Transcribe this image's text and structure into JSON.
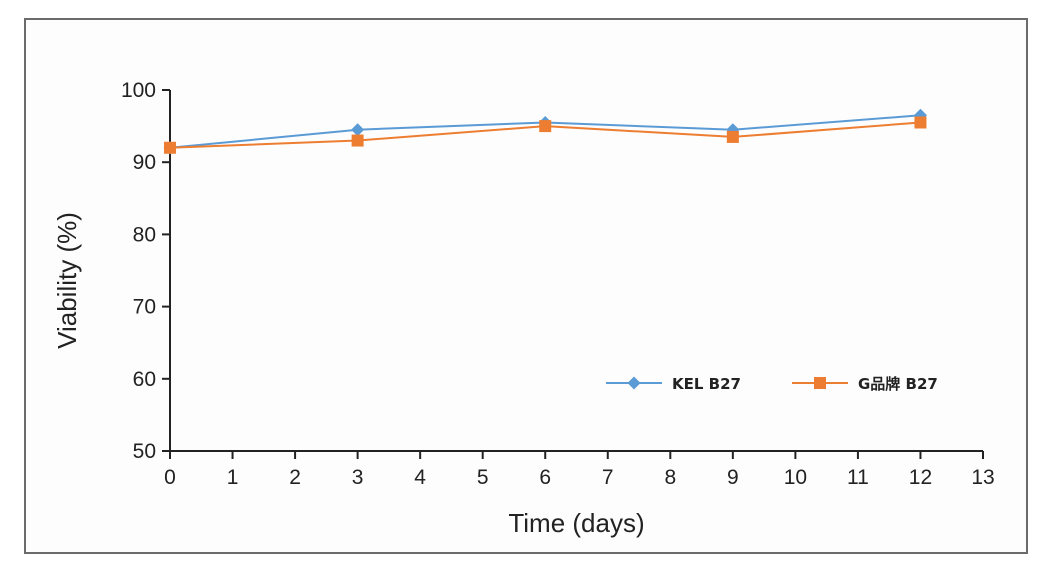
{
  "chart_data": {
    "type": "line",
    "title": "",
    "xlabel": "Time (days)",
    "ylabel": "Viability (%)",
    "xlim": [
      0,
      13
    ],
    "ylim": [
      50,
      100
    ],
    "xticks": [
      0,
      1,
      2,
      3,
      4,
      5,
      6,
      7,
      8,
      9,
      10,
      11,
      12,
      13
    ],
    "yticks": [
      50,
      60,
      70,
      80,
      90,
      100
    ],
    "grid": false,
    "legend_position": "bottom-right",
    "series": [
      {
        "name": "KEL  B27",
        "marker": "diamond",
        "color": "#5b9bd5",
        "x": [
          0,
          3,
          6,
          9,
          12
        ],
        "y": [
          92,
          94.5,
          95.5,
          94.5,
          96.5
        ]
      },
      {
        "name": "G品牌 B27",
        "marker": "square",
        "color": "#ed7d31",
        "x": [
          0,
          3,
          6,
          9,
          12
        ],
        "y": [
          92,
          93,
          95,
          93.5,
          95.5
        ]
      }
    ]
  }
}
